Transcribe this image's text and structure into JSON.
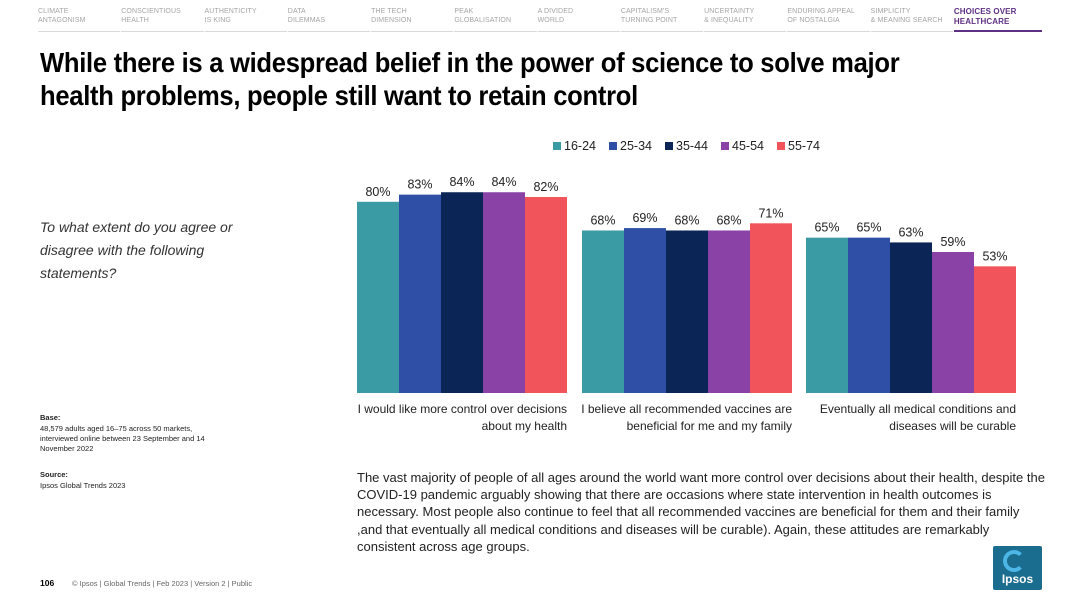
{
  "nav": [
    {
      "line1": "CLIMATE",
      "line2": "ANTAGONISM",
      "active": false
    },
    {
      "line1": "CONSCIENTIOUS",
      "line2": "HEALTH",
      "active": false
    },
    {
      "line1": "AUTHENTICITY",
      "line2": "IS KING",
      "active": false
    },
    {
      "line1": "DATA",
      "line2": "DILEMMAS",
      "active": false
    },
    {
      "line1": "THE TECH",
      "line2": "DIMENSION",
      "active": false
    },
    {
      "line1": "PEAK",
      "line2": "GLOBALISATION",
      "active": false
    },
    {
      "line1": "A DIVIDED",
      "line2": "WORLD",
      "active": false
    },
    {
      "line1": "CAPITALISM'S",
      "line2": "TURNING POINT",
      "active": false
    },
    {
      "line1": "UNCERTAINTY",
      "line2": "& INEQUALITY",
      "active": false
    },
    {
      "line1": "ENDURING APPEAL",
      "line2": "OF NOSTALGIA",
      "active": false
    },
    {
      "line1": "SIMPLICITY",
      "line2": "& MEANING SEARCH",
      "active": false
    },
    {
      "line1": "CHOICES OVER",
      "line2": "HEALTHCARE",
      "active": true
    }
  ],
  "title": "While there is a widespread belief in the power of science to solve major health problems, people still want to retain control",
  "question": "To what extent do you agree or disagree with the following statements?",
  "base": {
    "label": "Base:",
    "text": "48,579 adults aged 16–75 across 50 markets, interviewed online between 23 September and 14 November 2022"
  },
  "source": {
    "label": "Source:",
    "text": "Ipsos Global Trends 2023"
  },
  "chart_data": {
    "type": "bar",
    "categories": [
      [
        "I would like more control over decisions",
        "about my health"
      ],
      [
        "I believe all recommended vaccines are",
        "beneficial for me and my family"
      ],
      [
        "Eventually all medical conditions and",
        "diseases will be curable"
      ]
    ],
    "series": [
      {
        "name": "16-24",
        "color": "#3b9ba4",
        "values": [
          80,
          68,
          65
        ]
      },
      {
        "name": "25-34",
        "color": "#2f4ea5",
        "values": [
          83,
          69,
          65
        ]
      },
      {
        "name": "35-44",
        "color": "#0b2557",
        "values": [
          84,
          68,
          63
        ]
      },
      {
        "name": "45-54",
        "color": "#8b42a6",
        "values": [
          84,
          68,
          59
        ]
      },
      {
        "name": "55-74",
        "color": "#f2545b",
        "values": [
          82,
          71,
          53
        ]
      }
    ],
    "value_suffix": "%",
    "ylim": [
      0,
      100
    ],
    "legend": "top",
    "grid": false
  },
  "description": "The vast majority of people of all ages around the world want more control over decisions about their health, despite the COVID-19 pandemic arguably showing that there are occasions where state intervention in health outcomes is necessary. Most people also continue to feel that all recommended vaccines are beneficial for them and their family ,and that eventually all medical conditions and diseases will be curable). Again, these attitudes are remarkably consistent across age groups.",
  "footer": {
    "page_number": "106",
    "text": "© Ipsos | Global Trends | Feb 2023 | Version 2 | Public"
  },
  "logo": {
    "text": "Ipsos"
  }
}
